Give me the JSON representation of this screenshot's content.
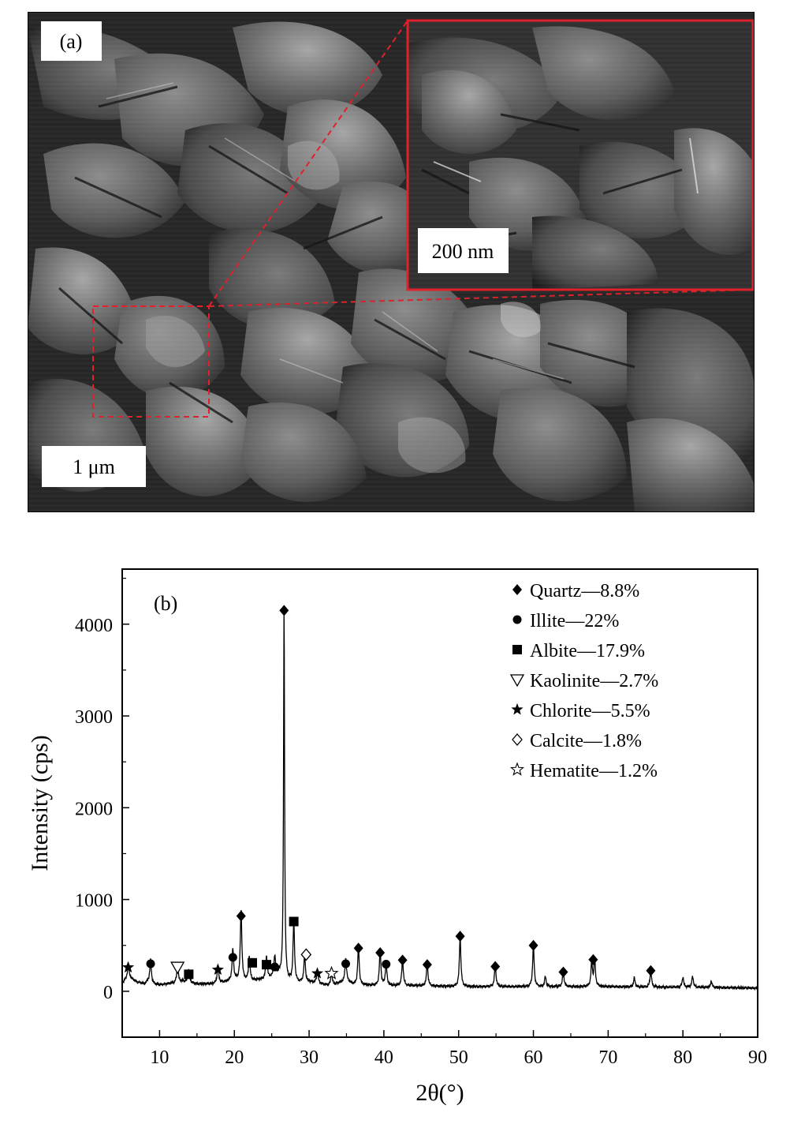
{
  "panel_a": {
    "label": "(a)",
    "scale_main": "1 μm",
    "scale_inset": "200 nm",
    "highlight_color": "#e0202a"
  },
  "panel_b": {
    "label": "(b)",
    "chart_data": {
      "type": "line",
      "xlabel": "2θ(°)",
      "ylabel": "Intensity (cps)",
      "xlim": [
        5,
        90
      ],
      "ylim": [
        -500,
        4600
      ],
      "xticks": [
        10,
        20,
        30,
        40,
        50,
        60,
        70,
        80,
        90
      ],
      "yticks": [
        0,
        1000,
        2000,
        3000,
        4000
      ],
      "grid": false,
      "legend_position": "top-right",
      "baseline": [
        [
          5,
          90
        ],
        [
          5.5,
          130
        ],
        [
          6,
          150
        ],
        [
          7,
          100
        ],
        [
          8,
          80
        ],
        [
          8.5,
          110
        ],
        [
          9,
          80
        ],
        [
          10,
          70
        ],
        [
          12,
          90
        ],
        [
          13,
          110
        ],
        [
          15,
          80
        ],
        [
          17,
          80
        ],
        [
          18,
          90
        ],
        [
          20,
          120
        ],
        [
          22,
          110
        ],
        [
          24,
          130
        ],
        [
          25,
          150
        ],
        [
          26,
          180
        ],
        [
          27,
          100
        ],
        [
          28.5,
          90
        ],
        [
          30,
          100
        ],
        [
          32,
          70
        ],
        [
          33,
          60
        ],
        [
          34,
          90
        ],
        [
          35,
          110
        ],
        [
          36,
          70
        ],
        [
          40,
          60
        ],
        [
          45,
          60
        ],
        [
          50,
          50
        ],
        [
          55,
          50
        ],
        [
          60,
          50
        ],
        [
          65,
          50
        ],
        [
          70,
          50
        ],
        [
          75,
          45
        ],
        [
          80,
          45
        ],
        [
          85,
          40
        ],
        [
          90,
          35
        ]
      ],
      "peaks": [
        {
          "x": 5.8,
          "y": 150
        },
        {
          "x": 8.8,
          "y": 250
        },
        {
          "x": 12.4,
          "y": 190
        },
        {
          "x": 13.9,
          "y": 140
        },
        {
          "x": 17.8,
          "y": 190
        },
        {
          "x": 19.8,
          "y": 340
        },
        {
          "x": 20.9,
          "y": 770
        },
        {
          "x": 22.0,
          "y": 270
        },
        {
          "x": 24.3,
          "y": 240
        },
        {
          "x": 25.4,
          "y": 220
        },
        {
          "x": 26.65,
          "y": 4100
        },
        {
          "x": 27.95,
          "y": 650
        },
        {
          "x": 29.4,
          "y": 290
        },
        {
          "x": 31.1,
          "y": 150
        },
        {
          "x": 33.0,
          "y": 140
        },
        {
          "x": 34.9,
          "y": 250
        },
        {
          "x": 36.6,
          "y": 420
        },
        {
          "x": 39.5,
          "y": 380
        },
        {
          "x": 40.3,
          "y": 250
        },
        {
          "x": 42.5,
          "y": 290
        },
        {
          "x": 45.8,
          "y": 240
        },
        {
          "x": 50.2,
          "y": 540
        },
        {
          "x": 54.9,
          "y": 240
        },
        {
          "x": 60.0,
          "y": 450
        },
        {
          "x": 61.6,
          "y": 110
        },
        {
          "x": 64.0,
          "y": 170
        },
        {
          "x": 67.8,
          "y": 260
        },
        {
          "x": 68.2,
          "y": 290
        },
        {
          "x": 73.5,
          "y": 100
        },
        {
          "x": 75.7,
          "y": 180
        },
        {
          "x": 80.0,
          "y": 110
        },
        {
          "x": 81.3,
          "y": 120
        },
        {
          "x": 83.8,
          "y": 70
        }
      ],
      "markers": [
        {
          "phase": "chlorite",
          "x": 5.8,
          "y": 260
        },
        {
          "phase": "illite",
          "x": 8.8,
          "y": 300
        },
        {
          "phase": "kaolinite",
          "x": 12.4,
          "y": 265
        },
        {
          "phase": "albite",
          "x": 13.9,
          "y": 185
        },
        {
          "phase": "chlorite",
          "x": 17.8,
          "y": 235
        },
        {
          "phase": "illite",
          "x": 19.8,
          "y": 370
        },
        {
          "phase": "quartz",
          "x": 20.9,
          "y": 820
        },
        {
          "phase": "albite",
          "x": 22.4,
          "y": 310
        },
        {
          "phase": "albite",
          "x": 24.3,
          "y": 290
        },
        {
          "phase": "illite",
          "x": 25.4,
          "y": 265
        },
        {
          "phase": "quartz",
          "x": 26.65,
          "y": 4150
        },
        {
          "phase": "albite",
          "x": 27.95,
          "y": 760
        },
        {
          "phase": "calcite",
          "x": 29.6,
          "y": 400
        },
        {
          "phase": "chlorite",
          "x": 31.1,
          "y": 195
        },
        {
          "phase": "hematite",
          "x": 33.0,
          "y": 195
        },
        {
          "phase": "illite",
          "x": 34.9,
          "y": 300
        },
        {
          "phase": "quartz",
          "x": 36.6,
          "y": 470
        },
        {
          "phase": "quartz",
          "x": 39.5,
          "y": 420
        },
        {
          "phase": "illite",
          "x": 40.3,
          "y": 295
        },
        {
          "phase": "quartz",
          "x": 42.5,
          "y": 340
        },
        {
          "phase": "quartz",
          "x": 45.8,
          "y": 290
        },
        {
          "phase": "quartz",
          "x": 50.2,
          "y": 600
        },
        {
          "phase": "quartz",
          "x": 54.9,
          "y": 270
        },
        {
          "phase": "quartz",
          "x": 60.0,
          "y": 500
        },
        {
          "phase": "quartz",
          "x": 64.0,
          "y": 210
        },
        {
          "phase": "quartz",
          "x": 68.0,
          "y": 345
        },
        {
          "phase": "quartz",
          "x": 75.7,
          "y": 225
        }
      ],
      "legend": [
        {
          "phase": "quartz",
          "label": "Quartz—8.8%",
          "symbol": "diamond-filled"
        },
        {
          "phase": "illite",
          "label": "Illite—22%",
          "symbol": "circle-filled"
        },
        {
          "phase": "albite",
          "label": "Albite—17.9%",
          "symbol": "square-filled"
        },
        {
          "phase": "kaolinite",
          "label": "Kaolinite—2.7%",
          "symbol": "triangle-down-open"
        },
        {
          "phase": "chlorite",
          "label": "Chlorite—5.5%",
          "symbol": "star-filled"
        },
        {
          "phase": "calcite",
          "label": "Calcite—1.8%",
          "symbol": "diamond-open"
        },
        {
          "phase": "hematite",
          "label": "Hematite—1.2%",
          "symbol": "star-open"
        }
      ]
    }
  }
}
